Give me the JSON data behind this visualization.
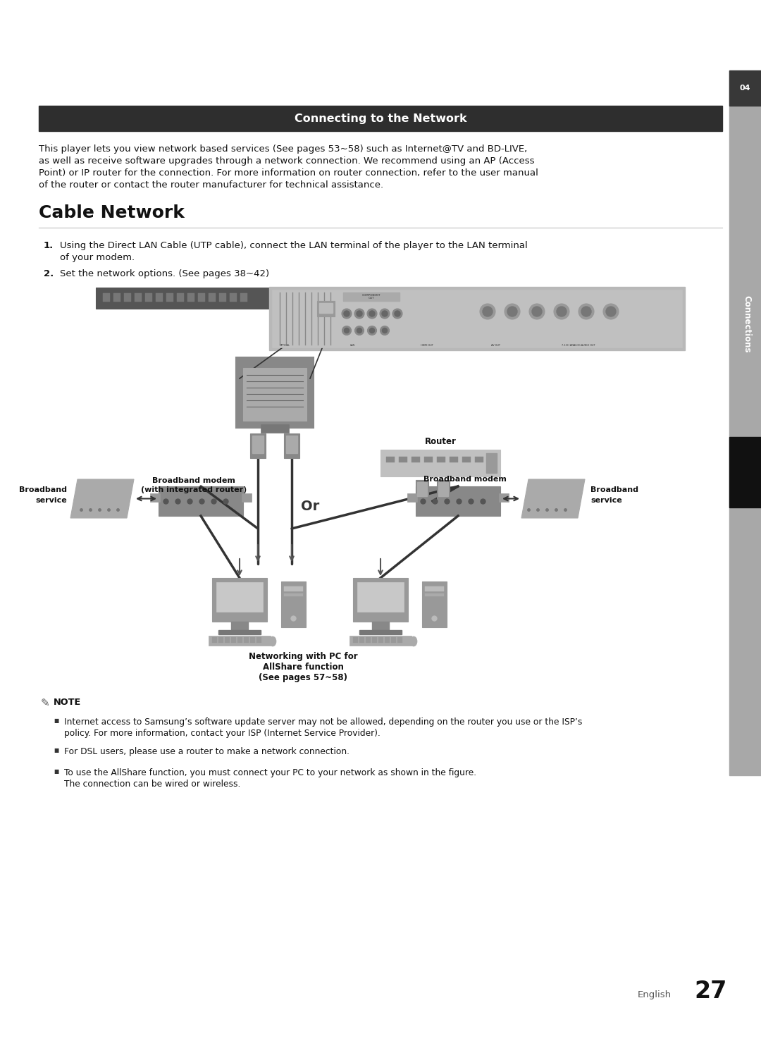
{
  "page_bg": "#ffffff",
  "header_bg": "#2e2e2e",
  "header_text": "Connecting to the Network",
  "header_text_color": "#ffffff",
  "intro_text_line1": "This player lets you view network based services (See pages 53~58) such as Internet@TV and BD-LIVE,",
  "intro_text_line2": "as well as receive software upgrades through a network connection. We recommend using an AP (Access",
  "intro_text_line3": "Point) or IP router for the connection. For more information on router connection, refer to the user manual",
  "intro_text_line4": "of the router or contact the router manufacturer for technical assistance.",
  "section_title": "Cable Network",
  "step1_num": "1.",
  "step1_line1": "Using the Direct LAN Cable (UTP cable), connect the LAN terminal of the player to the LAN terminal",
  "step1_line2": "of your modem.",
  "step2_num": "2.",
  "step2": "Set the network options. (See pages 38~42)",
  "note_title": "NOTE",
  "note1_line1": "Internet access to Samsung’s software update server may not be allowed, depending on the router you use or the ISP’s",
  "note1_line2": "policy. For more information, contact your ISP (Internet Service Provider).",
  "note2": "For DSL users, please use a router to make a network connection.",
  "note3_line1": "To use the AllShare function, you must connect your PC to your network as shown in the figure.",
  "note3_line2": "The connection can be wired or wireless.",
  "lbl_broadband_modem_left_1": "Broadband modem",
  "lbl_broadband_modem_left_2": "(with integrated router)",
  "lbl_broadband_service_left_1": "Broadband",
  "lbl_broadband_service_left_2": "service",
  "lbl_or": "Or",
  "lbl_router": "Router",
  "lbl_broadband_modem_right": "Broadband modem",
  "lbl_broadband_service_right_1": "Broadband",
  "lbl_broadband_service_right_2": "service",
  "lbl_networking_1": "Networking with PC for",
  "lbl_networking_2": "AllShare function",
  "lbl_networking_3": "(See pages 57~58)",
  "sidebar_number": "04",
  "sidebar_text": "Connections",
  "page_number_label": "English",
  "page_number": "27",
  "body_fs": 9.5,
  "note_fs": 8.8,
  "diag_fs": 8.0
}
